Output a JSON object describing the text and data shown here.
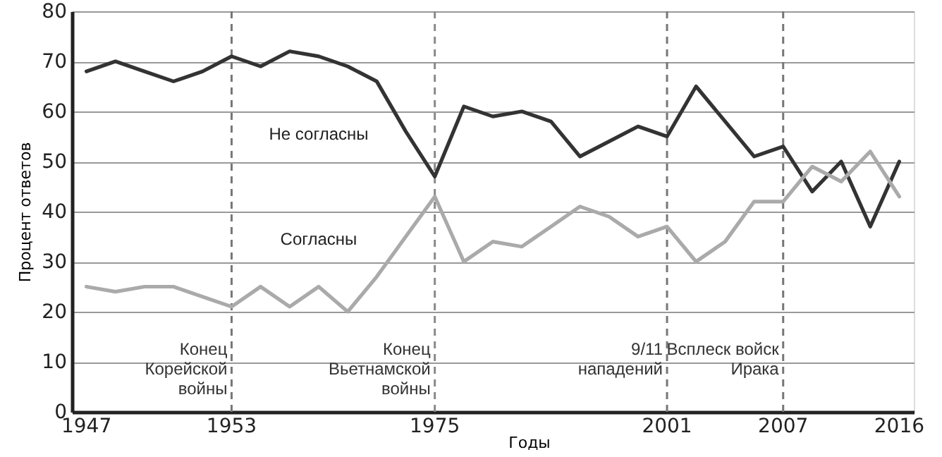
{
  "chart_data": {
    "type": "line",
    "categories": [
      "1947",
      null,
      null,
      null,
      null,
      "1953",
      null,
      null,
      null,
      null,
      null,
      null,
      "1975",
      null,
      null,
      null,
      null,
      null,
      null,
      null,
      "2001",
      null,
      null,
      null,
      "2007",
      null,
      null,
      null,
      "2016"
    ],
    "series": [
      {
        "name": "Не согласны",
        "color": "#333333",
        "values": [
          68,
          70,
          68,
          66,
          68,
          71,
          69,
          72,
          71,
          69,
          66,
          56,
          47,
          61,
          59,
          60,
          58,
          51,
          54,
          57,
          55,
          65,
          58,
          51,
          53,
          44,
          50,
          37,
          50
        ]
      },
      {
        "name": "Согласны",
        "color": "#aaaaaa",
        "values": [
          25,
          24,
          25,
          25,
          23,
          21,
          25,
          21,
          25,
          20,
          27,
          35,
          43,
          30,
          34,
          33,
          37,
          41,
          39,
          35,
          37,
          30,
          34,
          42,
          42,
          49,
          46,
          52,
          43
        ]
      }
    ],
    "xlabel": "Годы",
    "ylabel": "Процент ответов",
    "ylim": [
      0,
      80
    ],
    "yticks": [
      0,
      10,
      20,
      30,
      40,
      50,
      60,
      70,
      80
    ],
    "grid": "y",
    "marker": "none",
    "line_style": "solid",
    "ref_lines": [
      {
        "axis": "x",
        "value": "1953",
        "color": "#777777",
        "line_style": "dashed"
      },
      {
        "axis": "x",
        "value": "1975",
        "color": "#8a8a8a",
        "line_style": "dashed"
      },
      {
        "axis": "x",
        "value": "2001",
        "color": "#777777",
        "line_style": "dashed"
      },
      {
        "axis": "x",
        "value": "2007",
        "color": "#777777",
        "line_style": "dashed"
      }
    ],
    "annotations": [
      {
        "text": "Конец\nКорейской\nвойны",
        "x": "1953",
        "y": 14
      },
      {
        "text": "Конец\nВьетнамской\nвойны",
        "x": "1975",
        "y": 14
      },
      {
        "text": "9/11\nнападений",
        "x": "2001",
        "y": 14
      },
      {
        "text": "Всплеск войск\nИрака",
        "x": "2007",
        "y": 14
      }
    ]
  }
}
